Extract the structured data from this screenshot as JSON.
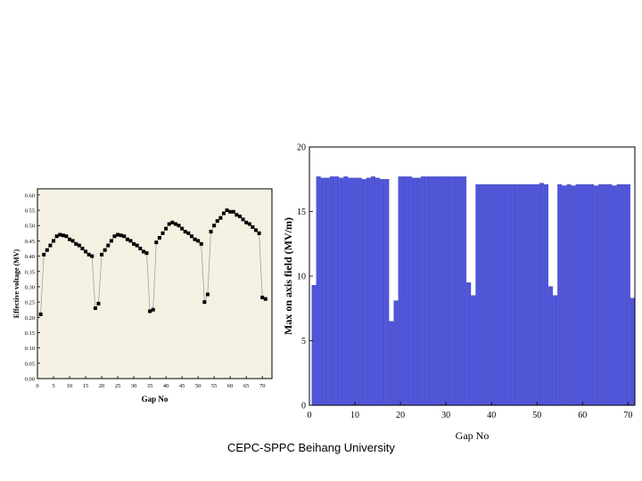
{
  "footer": "CEPC-SPPC Beihang University",
  "chart_data": [
    {
      "type": "scatter",
      "xlabel": "Gap No",
      "ylabel": "Effective voltage (MV)",
      "xlim": [
        0,
        73
      ],
      "ylim": [
        0,
        0.62
      ],
      "xticks": [
        0,
        5,
        10,
        15,
        20,
        25,
        30,
        35,
        40,
        45,
        50,
        55,
        60,
        65,
        70
      ],
      "yticks": [
        0.0,
        0.05,
        0.1,
        0.15,
        0.2,
        0.25,
        0.3,
        0.35,
        0.4,
        0.45,
        0.5,
        0.55,
        0.6
      ],
      "grid": false,
      "marker_color": "#000000",
      "line_color": "#a0a0a0",
      "background": "#f4f1e3",
      "x": [
        1,
        2,
        3,
        4,
        5,
        6,
        7,
        8,
        9,
        10,
        11,
        12,
        13,
        14,
        15,
        16,
        17,
        18,
        19,
        20,
        21,
        22,
        23,
        24,
        25,
        26,
        27,
        28,
        29,
        30,
        31,
        32,
        33,
        34,
        35,
        36,
        37,
        38,
        39,
        40,
        41,
        42,
        43,
        44,
        45,
        46,
        47,
        48,
        49,
        50,
        51,
        52,
        53,
        54,
        55,
        56,
        57,
        58,
        59,
        60,
        61,
        62,
        63,
        64,
        65,
        66,
        67,
        68,
        69,
        70,
        71
      ],
      "y": [
        0.21,
        0.405,
        0.42,
        0.435,
        0.45,
        0.465,
        0.47,
        0.468,
        0.465,
        0.455,
        0.45,
        0.44,
        0.435,
        0.425,
        0.415,
        0.405,
        0.4,
        0.23,
        0.245,
        0.405,
        0.42,
        0.435,
        0.45,
        0.465,
        0.47,
        0.468,
        0.465,
        0.455,
        0.45,
        0.44,
        0.435,
        0.425,
        0.415,
        0.41,
        0.22,
        0.225,
        0.445,
        0.46,
        0.475,
        0.49,
        0.505,
        0.51,
        0.505,
        0.5,
        0.49,
        0.48,
        0.475,
        0.465,
        0.455,
        0.45,
        0.44,
        0.25,
        0.275,
        0.48,
        0.5,
        0.515,
        0.525,
        0.54,
        0.55,
        0.545,
        0.545,
        0.535,
        0.53,
        0.52,
        0.51,
        0.505,
        0.495,
        0.485,
        0.475,
        0.265,
        0.26
      ]
    },
    {
      "type": "bar",
      "xlabel": "Gap No",
      "ylabel": "Max on axis field (MV/m)",
      "xlim": [
        0,
        71.5
      ],
      "ylim": [
        0,
        20
      ],
      "xticks": [
        0,
        10,
        20,
        30,
        40,
        50,
        60,
        70
      ],
      "yticks": [
        0,
        5,
        10,
        15,
        20
      ],
      "grid": false,
      "bar_color": "#4f55dc",
      "x": [
        1,
        2,
        3,
        4,
        5,
        6,
        7,
        8,
        9,
        10,
        11,
        12,
        13,
        14,
        15,
        16,
        17,
        18,
        19,
        20,
        21,
        22,
        23,
        24,
        25,
        26,
        27,
        28,
        29,
        30,
        31,
        32,
        33,
        34,
        35,
        36,
        37,
        38,
        39,
        40,
        41,
        42,
        43,
        44,
        45,
        46,
        47,
        48,
        49,
        50,
        51,
        52,
        53,
        54,
        55,
        56,
        57,
        58,
        59,
        60,
        61,
        62,
        63,
        64,
        65,
        66,
        67,
        68,
        69,
        70,
        71
      ],
      "values": [
        9.3,
        17.7,
        17.6,
        17.6,
        17.7,
        17.7,
        17.6,
        17.7,
        17.6,
        17.6,
        17.6,
        17.5,
        17.6,
        17.7,
        17.6,
        17.5,
        17.5,
        6.5,
        8.1,
        17.7,
        17.7,
        17.7,
        17.6,
        17.6,
        17.7,
        17.7,
        17.7,
        17.7,
        17.7,
        17.7,
        17.7,
        17.7,
        17.7,
        17.7,
        9.5,
        8.5,
        17.1,
        17.1,
        17.1,
        17.1,
        17.1,
        17.1,
        17.1,
        17.1,
        17.1,
        17.1,
        17.1,
        17.1,
        17.1,
        17.1,
        17.2,
        17.1,
        9.2,
        8.5,
        17.1,
        17.0,
        17.1,
        17.0,
        17.1,
        17.1,
        17.1,
        17.1,
        17.0,
        17.1,
        17.1,
        17.1,
        17.0,
        17.1,
        17.1,
        17.1,
        8.3
      ]
    }
  ]
}
